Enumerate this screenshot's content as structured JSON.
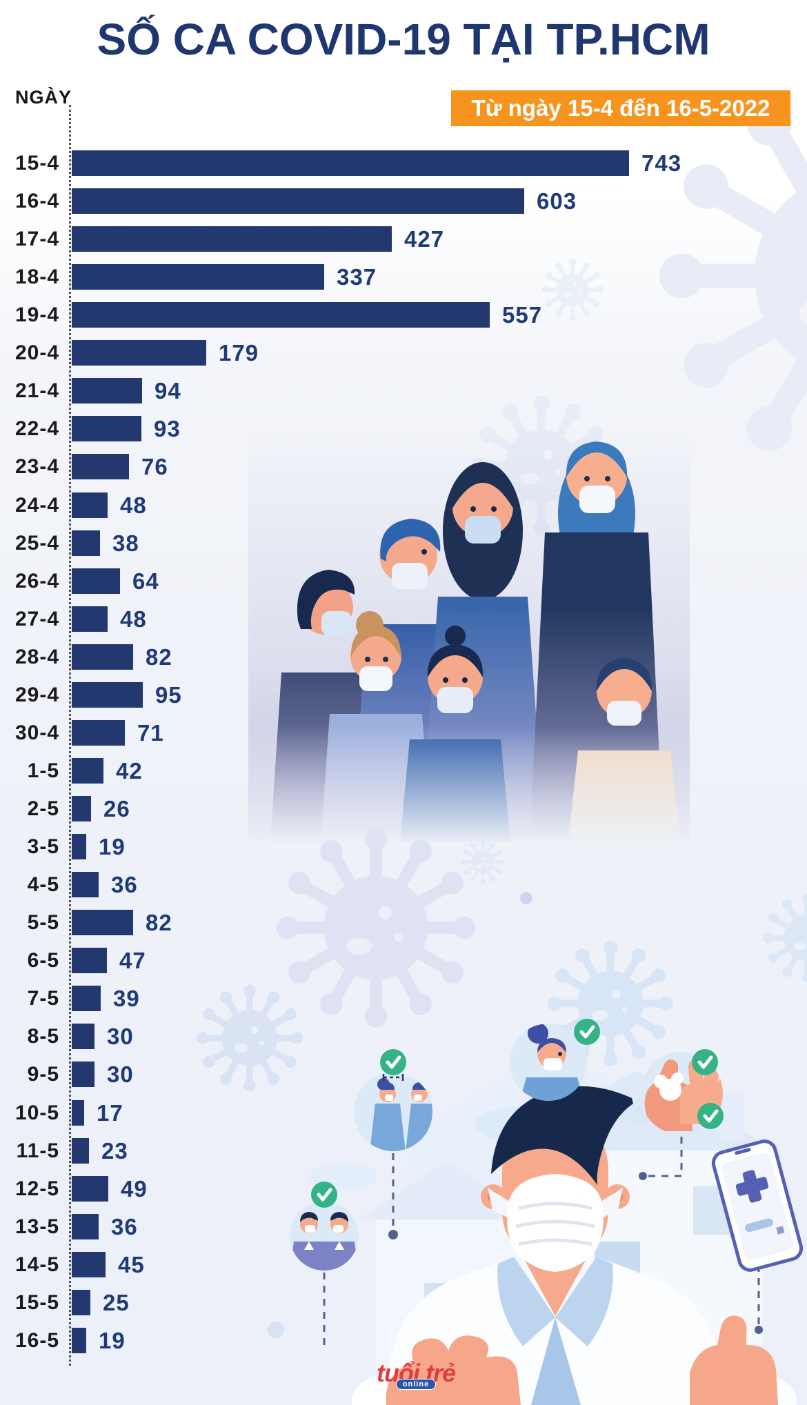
{
  "header": {
    "title": "SỐ CA COVID-19 TẠI TP.HCM",
    "badge": "Từ ngày 15-4 đến 16-5-2022"
  },
  "chart_data": {
    "type": "bar",
    "orientation": "horizontal",
    "title": "SỐ CA COVID-19 TẠI TP.HCM",
    "subtitle": "Từ ngày 15-4 đến 16-5-2022",
    "xlabel": "",
    "ylabel": "NGÀY",
    "xlim": [
      0,
      800
    ],
    "grid": false,
    "legend": "none",
    "categories": [
      "15-4",
      "16-4",
      "17-4",
      "18-4",
      "19-4",
      "20-4",
      "21-4",
      "22-4",
      "23-4",
      "24-4",
      "25-4",
      "26-4",
      "27-4",
      "28-4",
      "29-4",
      "30-4",
      "1-5",
      "2-5",
      "3-5",
      "4-5",
      "5-5",
      "6-5",
      "7-5",
      "8-5",
      "9-5",
      "10-5",
      "11-5",
      "12-5",
      "13-5",
      "14-5",
      "15-5",
      "16-5"
    ],
    "values": [
      743,
      603,
      427,
      337,
      557,
      179,
      94,
      93,
      76,
      48,
      38,
      64,
      48,
      82,
      95,
      71,
      42,
      26,
      19,
      36,
      82,
      47,
      39,
      30,
      30,
      17,
      23,
      49,
      36,
      45,
      25,
      19
    ],
    "bar_color": "#22386F",
    "value_label_color": "#1F3A78",
    "category_label_color": "#1B1B1D"
  },
  "footer": {
    "logo_main": "tuổi trẻ",
    "logo_sub": "online"
  },
  "colors": {
    "navy": "#22386F",
    "orange": "#F7941E",
    "green_check": "#35B286",
    "light_circle": "#DCE9F7",
    "indigo": "#5560B2",
    "logo_red": "#E23B3E",
    "logo_blue": "#2B57A8"
  },
  "decorations": [
    "coronavirus-icon",
    "masked-people-illustration",
    "doctor-with-mask-illustration",
    "social-distancing-icon",
    "wear-mask-icon",
    "wash-hands-icon",
    "health-declaration-phone-icon",
    "check-icon",
    "house-illustration",
    "tuoi-tre-logo"
  ]
}
